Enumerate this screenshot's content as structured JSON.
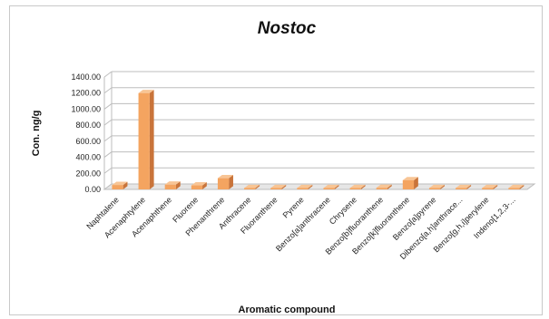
{
  "chart_data": {
    "type": "bar",
    "title": "Nostoc",
    "xlabel": "Aromatic compound",
    "ylabel": "Con. ng/g",
    "ylim": [
      0,
      1400
    ],
    "yticks": [
      "0.00",
      "200.00",
      "400.00",
      "600.00",
      "800.00",
      "1000.00",
      "1200.00",
      "1400.00"
    ],
    "grid": true,
    "style": "3d-column",
    "bar_color": "#F4A460",
    "categories": [
      "Naphtalene",
      "Acenaphtylene",
      "Acenaphthene",
      "Fluorene",
      "Phenanthrene",
      "Anthracene",
      "Fluoranthene",
      "Pyrene",
      "Benzo[a]anthracene",
      "Chrysene",
      "Benzo[b]fluoranthene",
      "Benzo[k]fluoranthene",
      "Benzo[a]pyrene",
      "Dibenzo[a,h]anthrace...",
      "Benzo[g,h,i]perylene",
      "Indeno[1,2,3-..."
    ],
    "values": [
      55,
      1200,
      60,
      50,
      140,
      0,
      0,
      0,
      0,
      0,
      20,
      115,
      0,
      0,
      0,
      0
    ]
  }
}
